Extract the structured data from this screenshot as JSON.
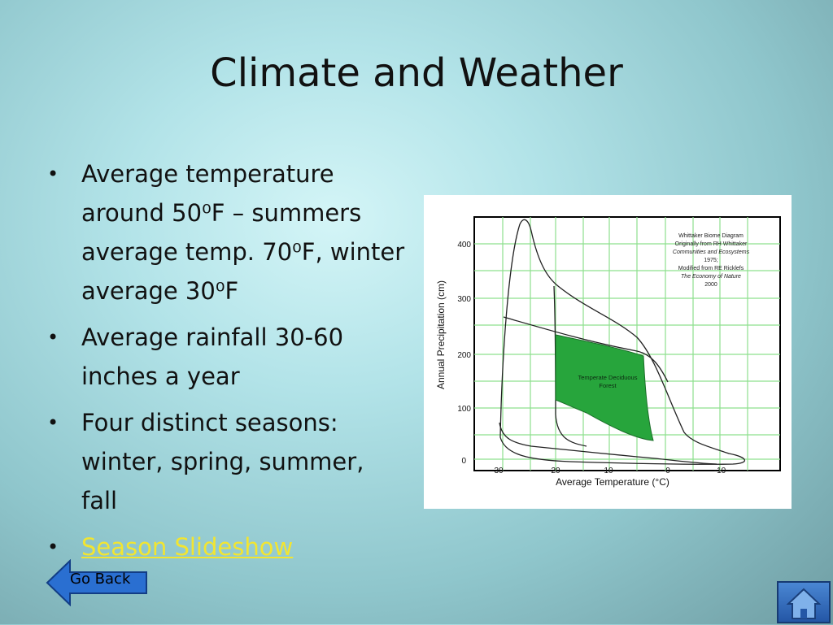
{
  "slide": {
    "title": "Climate and Weather",
    "bullets": [
      "Average temperature around 50⁰F – summers average temp. 70⁰F, winter average 30⁰F",
      "Average rainfall 30-60 inches a year",
      "Four distinct seasons: winter, spring, summer, fall"
    ],
    "link": "Season Slideshow"
  },
  "figure": {
    "credit_lines": [
      "Whittaker Biome Diagram",
      "Originally from RH Whittaker",
      "Communities and Ecosystems",
      "1975;",
      "Modified from RE Ricklefs",
      "The Economy of Nature",
      "2000"
    ],
    "region_label": [
      "Temperate Deciduous",
      "Forest"
    ],
    "xlabel": "Average Temperature (°C)",
    "ylabel": "Annual Precipitation (cm)",
    "x_ticks": [
      "30",
      "20",
      "10",
      "0",
      "-10"
    ],
    "y_ticks": [
      "400",
      "300",
      "200",
      "100",
      "0"
    ],
    "highlight_color": "#27a53c"
  },
  "nav": {
    "go_back_label": "Go Back",
    "home_icon": "home-icon"
  }
}
